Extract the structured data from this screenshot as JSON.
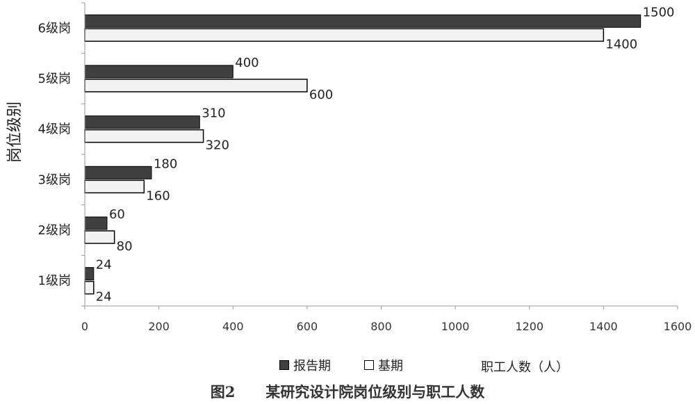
{
  "chart_data": {
    "type": "bar",
    "orientation": "horizontal",
    "categories": [
      "1级岗",
      "2级岗",
      "3级岗",
      "4级岗",
      "5级岗",
      "6级岗"
    ],
    "series": [
      {
        "name": "报告期",
        "values": [
          24,
          60,
          180,
          310,
          400,
          1500
        ],
        "color": "#404040"
      },
      {
        "name": "基期",
        "values": [
          24,
          80,
          160,
          320,
          600,
          1400
        ],
        "color": "#f2f2f2"
      }
    ],
    "data_labels": {
      "报告期": [
        "24",
        "60",
        "180",
        "310",
        "400",
        "1500"
      ],
      "基期": [
        "24",
        "80",
        "160",
        "320",
        "600",
        "1400"
      ]
    },
    "xlabel": "职工人数（人）",
    "ylabel": "岗位级别",
    "xlim": [
      0,
      1600
    ],
    "xticks": [
      "0",
      "200",
      "400",
      "600",
      "800",
      "1000",
      "1200",
      "1400",
      "1600"
    ],
    "grid": false,
    "legend_position": "bottom",
    "caption_num": "图2",
    "caption_text": "某研究设计院岗位级别与职工人数"
  }
}
